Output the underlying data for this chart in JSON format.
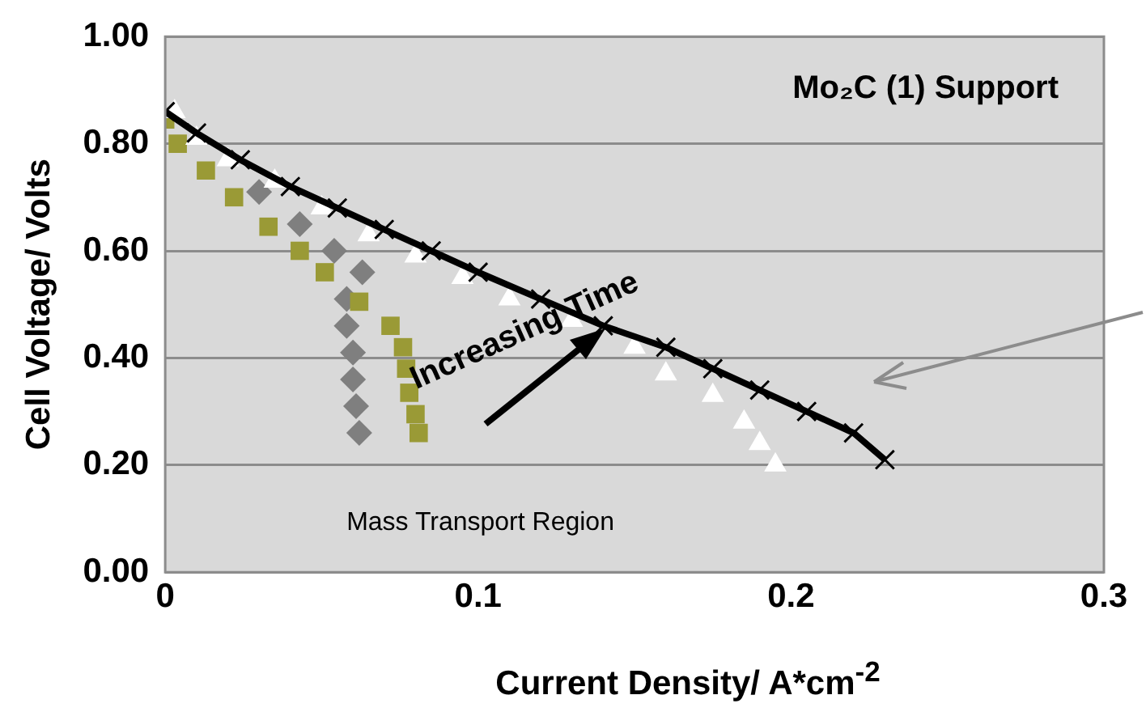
{
  "chart_data": {
    "type": "scatter",
    "xlabel": "Current Density/ A*cm$^{-2}$",
    "ylabel": "Cell Voltage/ Volts",
    "annotations": [
      "Mo₂C (1) Support",
      "Increasing Time",
      "Mass Transport Region"
    ],
    "xlim": [
      0,
      0.3
    ],
    "xticks": [
      0,
      0.1,
      0.2,
      0.3
    ],
    "ylim": [
      0,
      1
    ],
    "yticks": [
      {
        "value": 0,
        "label": "0.00"
      },
      {
        "value": 0.2,
        "label": "0.20"
      },
      {
        "value": 0.4,
        "label": "0.40"
      },
      {
        "value": 0.6,
        "label": "0.60"
      },
      {
        "value": 0.8,
        "label": "0.80"
      },
      {
        "value": 1,
        "label": "1.00"
      }
    ],
    "grid": "y",
    "legend": false,
    "series": [
      {
        "marker": "diamond",
        "color": "#7f7f7f",
        "x": [
          0.03,
          0.043,
          0.054,
          0.063,
          0.058,
          0.058,
          0.06,
          0.06,
          0.061,
          0.062
        ],
        "values": [
          0.71,
          0.65,
          0.6,
          0.56,
          0.51,
          0.46,
          0.41,
          0.36,
          0.31,
          0.26
        ]
      },
      {
        "marker": "square",
        "color": "#9a9a36",
        "x": [
          0.0,
          0.004,
          0.013,
          0.022,
          0.033,
          0.043,
          0.051,
          0.062,
          0.072,
          0.076,
          0.077,
          0.078,
          0.08,
          0.081
        ],
        "values": [
          0.845,
          0.8,
          0.75,
          0.7,
          0.645,
          0.6,
          0.56,
          0.505,
          0.46,
          0.42,
          0.38,
          0.335,
          0.295,
          0.26
        ]
      },
      {
        "marker": "triangle",
        "color": "#ffffff",
        "x": [
          0.003,
          0.01,
          0.02,
          0.035,
          0.05,
          0.065,
          0.08,
          0.095,
          0.11,
          0.13,
          0.15,
          0.16,
          0.175,
          0.185,
          0.19,
          0.195
        ],
        "values": [
          0.86,
          0.81,
          0.77,
          0.73,
          0.68,
          0.63,
          0.59,
          0.55,
          0.51,
          0.47,
          0.42,
          0.37,
          0.33,
          0.28,
          0.24,
          0.2
        ]
      },
      {
        "type": "line",
        "marker": "cross",
        "color": "#000000",
        "x": [
          0,
          0.01,
          0.024,
          0.04,
          0.055,
          0.07,
          0.085,
          0.1,
          0.12,
          0.14,
          0.16,
          0.175,
          0.19,
          0.205,
          0.22,
          0.23
        ],
        "values": [
          0.86,
          0.82,
          0.77,
          0.72,
          0.68,
          0.64,
          0.6,
          0.56,
          0.51,
          0.46,
          0.42,
          0.38,
          0.34,
          0.3,
          0.26,
          0.21
        ]
      }
    ]
  }
}
